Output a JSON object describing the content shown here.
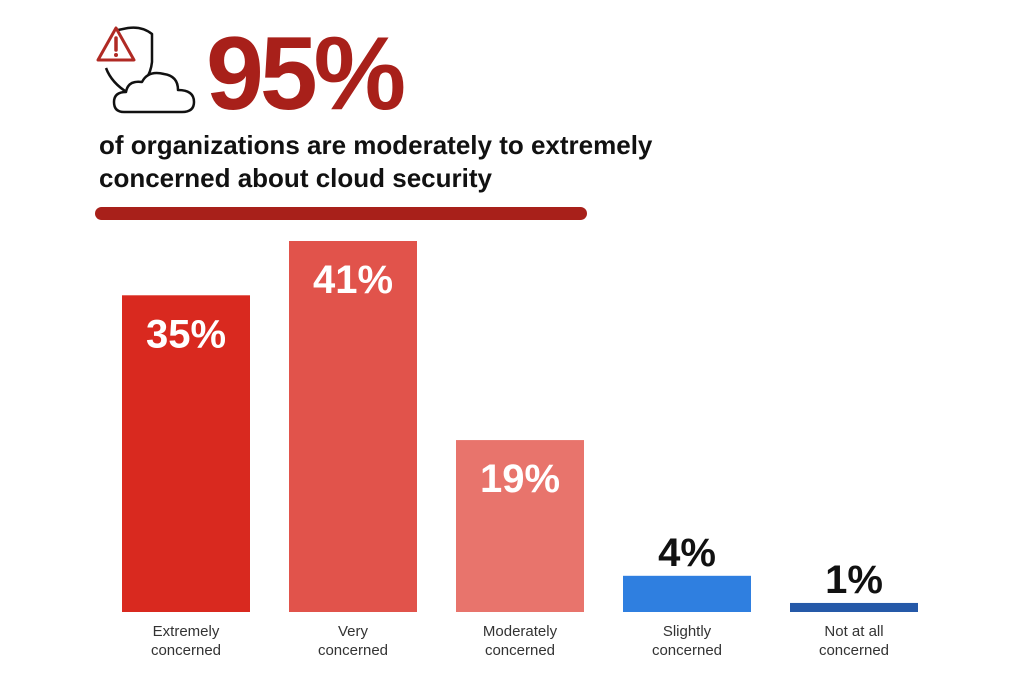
{
  "headline": {
    "stat": "95%",
    "subtitle": "of organizations are moderately to extremely concerned about cloud security",
    "icon": "shield-warning-cloud-icon"
  },
  "colors": {
    "brand_dark_red": "#a8201a",
    "divider": "#a8201a",
    "icon_warning": "#b02a24",
    "icon_outline": "#111111"
  },
  "chart_data": {
    "type": "bar",
    "title": "",
    "xlabel": "",
    "ylabel": "",
    "ylim": [
      0,
      41
    ],
    "grid": false,
    "categories": [
      [
        "Extremely",
        "concerned"
      ],
      [
        "Very",
        "concerned"
      ],
      [
        "Moderately",
        "concerned"
      ],
      [
        "Slightly",
        "concerned"
      ],
      [
        "Not at all",
        "concerned"
      ]
    ],
    "values": [
      35,
      41,
      19,
      4,
      1
    ],
    "value_labels": [
      "35%",
      "41%",
      "19%",
      "4%",
      "1%"
    ],
    "bar_colors": [
      "#d9291f",
      "#e1534b",
      "#e8746c",
      "#2f7fe0",
      "#2559a8"
    ]
  }
}
